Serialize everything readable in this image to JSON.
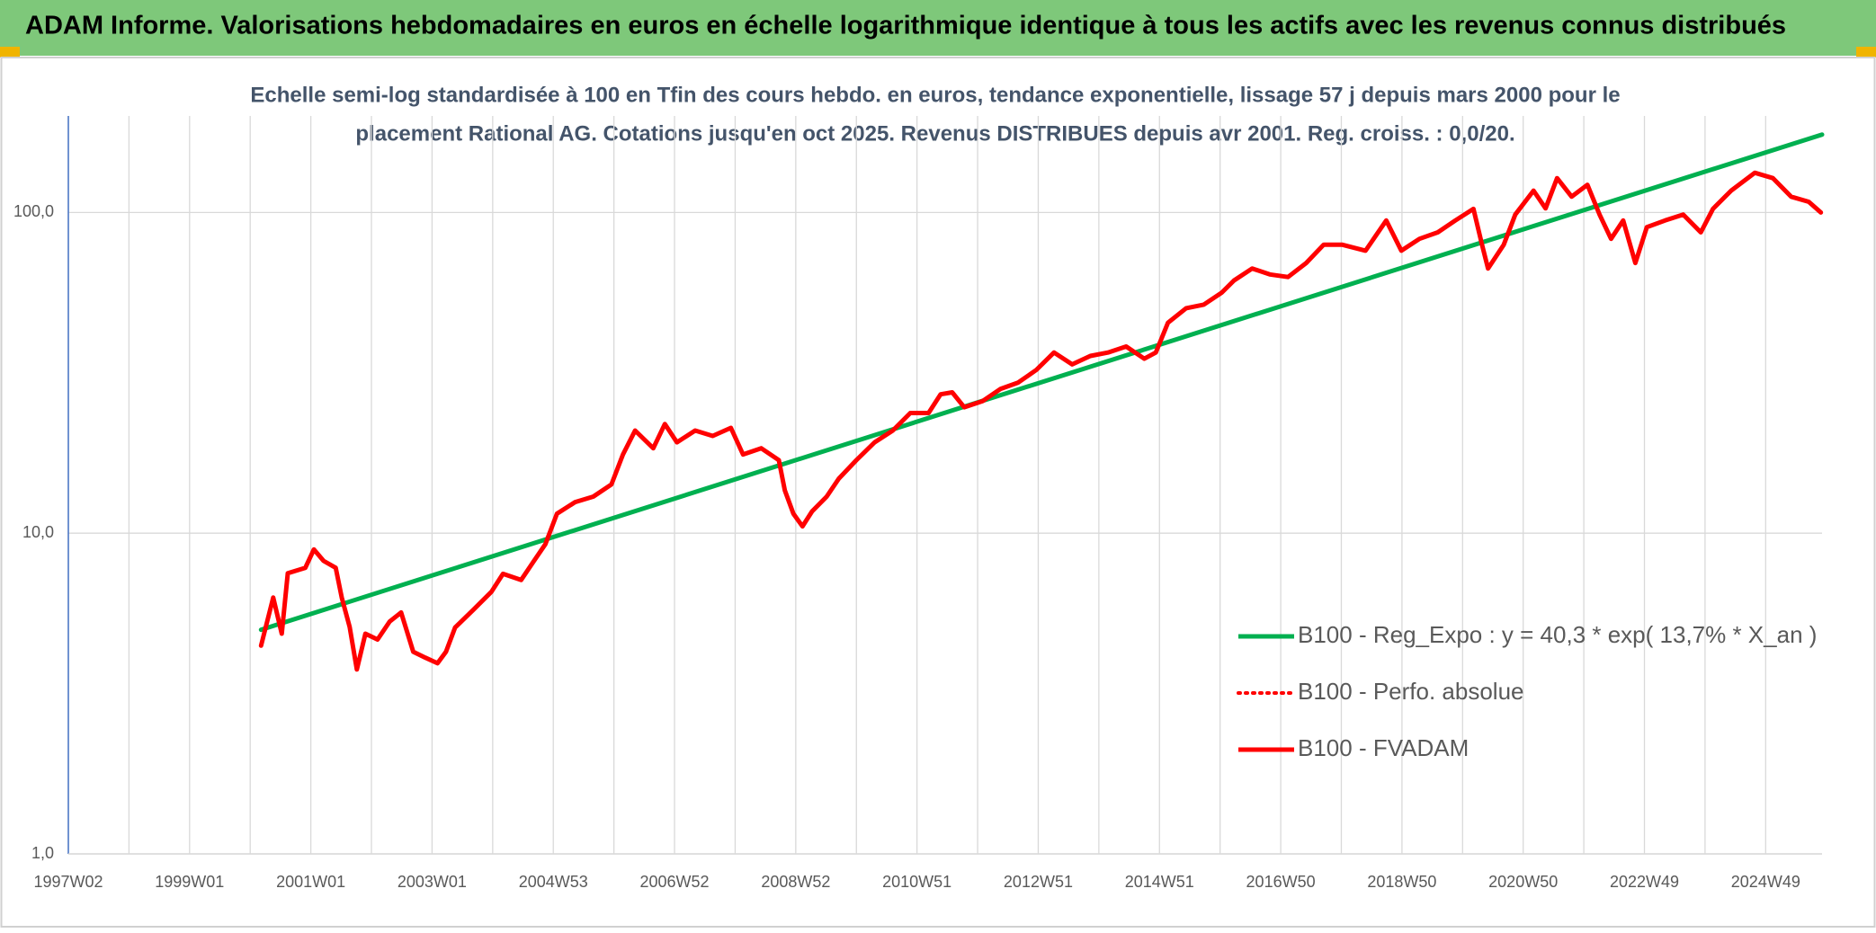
{
  "header": {
    "title": "ADAM Informe. Valorisations hebdomadaires en euros en échelle logarithmique identique à tous les actifs avec les revenus connus distribués"
  },
  "chart_data": {
    "type": "line",
    "subtitle": [
      "Echelle semi-log standardisée à 100 en Tfin des cours hebdo. en euros, tendance exponentielle, lissage 57 j depuis mars 2000 pour le",
      "placement Rational AG. Cotations jusqu'en oct 2025. Revenus DISTRIBUES depuis avr 2001. Reg. croiss. : 0,0/20."
    ],
    "log_y": true,
    "grid": true,
    "legend": "lower-right",
    "xlim": [
      1997.0,
      2025.93
    ],
    "xticks": [
      {
        "value": 1997.0,
        "label": "1997W02"
      },
      {
        "value": 1999.0,
        "label": "1999W01"
      },
      {
        "value": 2001.0,
        "label": "2001W01"
      },
      {
        "value": 2003.0,
        "label": "2003W01"
      },
      {
        "value": 2005.0,
        "label": "2004W53"
      },
      {
        "value": 2007.0,
        "label": "2006W52"
      },
      {
        "value": 2009.0,
        "label": "2008W52"
      },
      {
        "value": 2011.0,
        "label": "2010W51"
      },
      {
        "value": 2013.0,
        "label": "2012W51"
      },
      {
        "value": 2015.0,
        "label": "2014W51"
      },
      {
        "value": 2017.0,
        "label": "2016W50"
      },
      {
        "value": 2019.0,
        "label": "2018W50"
      },
      {
        "value": 2021.0,
        "label": "2020W50"
      },
      {
        "value": 2023.0,
        "label": "2022W49"
      },
      {
        "value": 2025.0,
        "label": "2024W49"
      }
    ],
    "xminorticks": [
      1998,
      2000,
      2002,
      2004,
      2006,
      2008,
      2010,
      2012,
      2014,
      2016,
      2018,
      2020,
      2022,
      2024
    ],
    "ylim": [
      1,
      200
    ],
    "yticks": [
      {
        "value": 1,
        "label": "1,0"
      },
      {
        "value": 10,
        "label": "10,0"
      },
      {
        "value": 100,
        "label": "100,0"
      }
    ],
    "series": [
      {
        "name": "B100 - Reg_Expo : y = 40,3 * exp( 13,7% *  X_an )",
        "color": "#00b050",
        "style": "solid",
        "x": [
          2000.18,
          2025.93
        ],
        "values": [
          5.0,
          175
        ]
      },
      {
        "name": "B100 - Perfo. absolue",
        "color": "#ff0000",
        "style": "dotted",
        "x": [
          2000.18,
          2000.38,
          2000.52,
          2000.62,
          2000.91,
          2001.05,
          2001.21,
          2001.41,
          2001.51,
          2001.64,
          2001.76,
          2001.9,
          2002.1,
          2002.3,
          2002.49,
          2002.69,
          2002.89,
          2003.09,
          2003.23,
          2003.38,
          2003.68,
          2003.98,
          2004.17,
          2004.47,
          2004.67,
          2004.87,
          2005.06,
          2005.36,
          2005.66,
          2005.96,
          2006.15,
          2006.35,
          2006.65,
          2006.84,
          2007.04,
          2007.34,
          2007.63,
          2007.93,
          2008.13,
          2008.43,
          2008.72,
          2008.82,
          2008.96,
          2009.11,
          2009.27,
          2009.51,
          2009.71,
          2010.0,
          2010.3,
          2010.6,
          2010.89,
          2011.19,
          2011.39,
          2011.58,
          2011.78,
          2012.08,
          2012.38,
          2012.67,
          2012.97,
          2013.26,
          2013.56,
          2013.86,
          2014.15,
          2014.45,
          2014.75,
          2014.94,
          2015.14,
          2015.44,
          2015.73,
          2016.03,
          2016.23,
          2016.53,
          2016.82,
          2017.12,
          2017.42,
          2017.71,
          2018.01,
          2018.4,
          2018.74,
          2018.99,
          2019.29,
          2019.59,
          2019.88,
          2020.18,
          2020.32,
          2020.42,
          2020.68,
          2020.87,
          2021.17,
          2021.37,
          2021.56,
          2021.8,
          2022.06,
          2022.26,
          2022.45,
          2022.65,
          2022.85,
          2023.04,
          2023.34,
          2023.64,
          2023.93,
          2024.13,
          2024.43,
          2024.82,
          2025.12,
          2025.42,
          2025.71,
          2025.91
        ],
        "values": [
          4.46,
          6.3,
          4.86,
          7.5,
          7.8,
          8.9,
          8.2,
          7.8,
          6.3,
          5.1,
          3.76,
          4.86,
          4.66,
          5.3,
          5.66,
          4.27,
          4.09,
          3.93,
          4.27,
          5.08,
          5.77,
          6.57,
          7.47,
          7.15,
          8.14,
          9.25,
          11.5,
          12.5,
          13.0,
          14.2,
          17.6,
          20.9,
          18.4,
          21.9,
          19.2,
          20.9,
          20.1,
          21.3,
          17.6,
          18.4,
          16.9,
          13.6,
          11.5,
          10.5,
          11.7,
          13.0,
          14.8,
          16.9,
          19.2,
          20.9,
          23.7,
          23.7,
          27.1,
          27.5,
          24.7,
          25.8,
          28.2,
          29.5,
          32.3,
          36.6,
          33.6,
          35.7,
          36.6,
          38.2,
          35.0,
          36.6,
          45.3,
          50.3,
          51.6,
          56.3,
          61.4,
          66.9,
          64.1,
          62.9,
          69.6,
          79.4,
          79.4,
          76.0,
          94.4,
          76.0,
          82.8,
          86.7,
          94.4,
          102.6,
          79.4,
          66.9,
          79.4,
          98.5,
          117,
          103,
          128,
          112,
          122,
          98.5,
          82.8,
          94.4,
          69.6,
          90.0,
          94.4,
          98.5,
          86.7,
          102.6,
          117,
          133,
          128,
          112,
          108,
          100
        ]
      },
      {
        "name": "B100 - FVADAM",
        "color": "#ff0000",
        "style": "solid",
        "x": [
          2000.18,
          2000.38,
          2000.52,
          2000.62,
          2000.91,
          2001.05,
          2001.21,
          2001.41,
          2001.51,
          2001.64,
          2001.76,
          2001.9,
          2002.1,
          2002.3,
          2002.49,
          2002.69,
          2002.89,
          2003.09,
          2003.23,
          2003.38,
          2003.68,
          2003.98,
          2004.17,
          2004.47,
          2004.67,
          2004.87,
          2005.06,
          2005.36,
          2005.66,
          2005.96,
          2006.15,
          2006.35,
          2006.65,
          2006.84,
          2007.04,
          2007.34,
          2007.63,
          2007.93,
          2008.13,
          2008.43,
          2008.72,
          2008.82,
          2008.96,
          2009.11,
          2009.27,
          2009.51,
          2009.71,
          2010.0,
          2010.3,
          2010.6,
          2010.89,
          2011.19,
          2011.39,
          2011.58,
          2011.78,
          2012.08,
          2012.38,
          2012.67,
          2012.97,
          2013.26,
          2013.56,
          2013.86,
          2014.15,
          2014.45,
          2014.75,
          2014.94,
          2015.14,
          2015.44,
          2015.73,
          2016.03,
          2016.23,
          2016.53,
          2016.82,
          2017.12,
          2017.42,
          2017.71,
          2018.01,
          2018.4,
          2018.74,
          2018.99,
          2019.29,
          2019.59,
          2019.88,
          2020.18,
          2020.32,
          2020.42,
          2020.68,
          2020.87,
          2021.17,
          2021.37,
          2021.56,
          2021.8,
          2022.06,
          2022.26,
          2022.45,
          2022.65,
          2022.85,
          2023.04,
          2023.34,
          2023.64,
          2023.93,
          2024.13,
          2024.43,
          2024.82,
          2025.12,
          2025.42,
          2025.71,
          2025.91
        ],
        "values": [
          4.46,
          6.3,
          4.86,
          7.5,
          7.8,
          8.9,
          8.2,
          7.8,
          6.3,
          5.1,
          3.76,
          4.86,
          4.66,
          5.3,
          5.66,
          4.27,
          4.09,
          3.93,
          4.27,
          5.08,
          5.77,
          6.57,
          7.47,
          7.15,
          8.14,
          9.25,
          11.5,
          12.5,
          13.0,
          14.2,
          17.6,
          20.9,
          18.4,
          21.9,
          19.2,
          20.9,
          20.1,
          21.3,
          17.6,
          18.4,
          16.9,
          13.6,
          11.5,
          10.5,
          11.7,
          13.0,
          14.8,
          16.9,
          19.2,
          20.9,
          23.7,
          23.7,
          27.1,
          27.5,
          24.7,
          25.8,
          28.2,
          29.5,
          32.3,
          36.6,
          33.6,
          35.7,
          36.6,
          38.2,
          35.0,
          36.6,
          45.3,
          50.3,
          51.6,
          56.3,
          61.4,
          66.9,
          64.1,
          62.9,
          69.6,
          79.4,
          79.4,
          76.0,
          94.4,
          76.0,
          82.8,
          86.7,
          94.4,
          102.6,
          79.4,
          66.9,
          79.4,
          98.5,
          117,
          103,
          128,
          112,
          122,
          98.5,
          82.8,
          94.4,
          69.6,
          90.0,
          94.4,
          98.5,
          86.7,
          102.6,
          117,
          133,
          128,
          112,
          108,
          100
        ]
      }
    ]
  }
}
